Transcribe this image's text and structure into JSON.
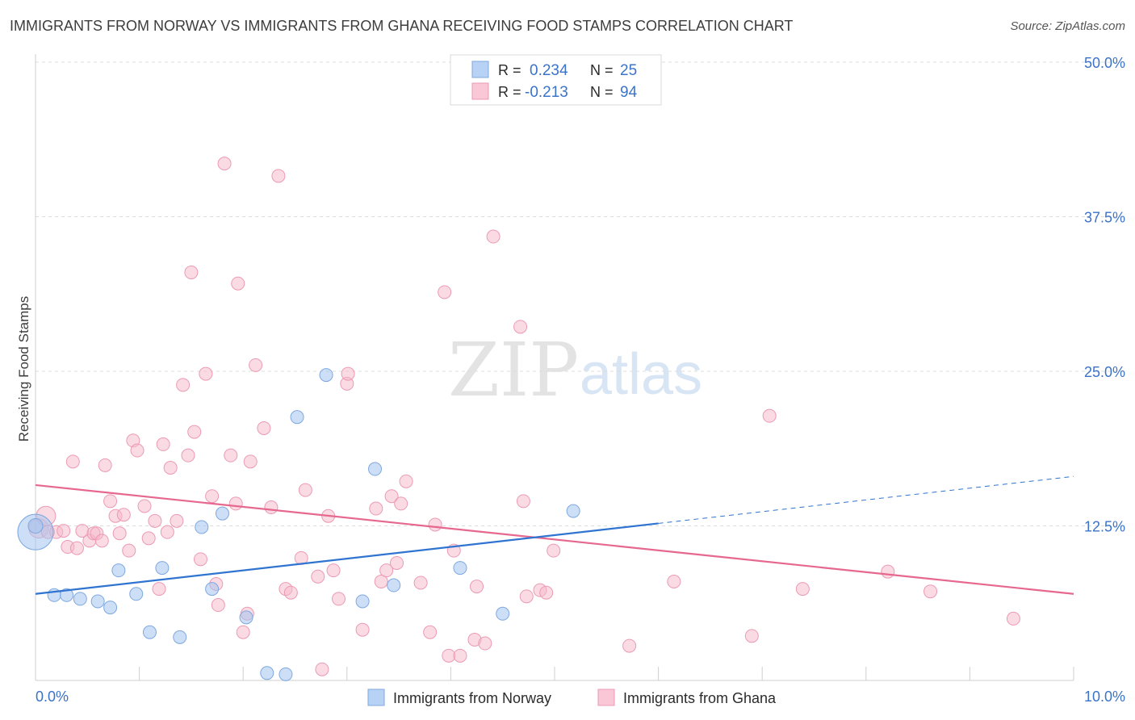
{
  "chart_data": {
    "type": "scatter",
    "title": "IMMIGRANTS FROM NORWAY VS IMMIGRANTS FROM GHANA RECEIVING FOOD STAMPS CORRELATION CHART",
    "source": "Source: ZipAtlas.com",
    "xlabel": "",
    "ylabel": "Receiving Food Stamps",
    "xlim": [
      0,
      10
    ],
    "ylim": [
      0,
      50
    ],
    "x_tick_labels": [
      "0.0%",
      "10.0%"
    ],
    "y_ticks": [
      12.5,
      25.0,
      37.5,
      50.0
    ],
    "y_tick_labels": [
      "12.5%",
      "25.0%",
      "37.5%",
      "50.0%"
    ],
    "watermark": {
      "part1": "ZIP",
      "part2": "atlas"
    },
    "legend": {
      "norway": {
        "r_label": "R =",
        "r_value": "0.234",
        "n_label": "N =",
        "n_value": "25"
      },
      "ghana": {
        "r_label": "R =",
        "r_value": "-0.213",
        "n_label": "N =",
        "n_value": "94"
      }
    },
    "series": [
      {
        "name": "Immigrants from Norway",
        "color": "#a4c5ee",
        "line_color": "#2f74d0",
        "trend": {
          "x0": 0,
          "y0": 7.0,
          "x1": 6.0,
          "y1": 12.7,
          "dash_to_x": 10.0,
          "dash_to_y": 16.5
        },
        "points": [
          [
            0.0,
            12.0,
            22
          ],
          [
            0.0,
            12.5,
            9
          ],
          [
            0.18,
            6.9,
            8
          ],
          [
            0.3,
            6.9,
            8
          ],
          [
            0.43,
            6.6,
            8
          ],
          [
            0.6,
            6.4,
            8
          ],
          [
            0.72,
            5.9,
            8
          ],
          [
            0.8,
            8.9,
            8
          ],
          [
            0.97,
            7.0,
            8
          ],
          [
            1.1,
            3.9,
            8
          ],
          [
            1.22,
            9.1,
            8
          ],
          [
            1.39,
            3.5,
            8
          ],
          [
            1.6,
            12.4,
            8
          ],
          [
            1.7,
            7.4,
            8
          ],
          [
            1.8,
            13.5,
            8
          ],
          [
            2.03,
            5.1,
            8
          ],
          [
            2.23,
            0.6,
            8
          ],
          [
            2.41,
            0.5,
            8
          ],
          [
            2.52,
            21.3,
            8
          ],
          [
            2.8,
            24.7,
            8
          ],
          [
            3.15,
            6.4,
            8
          ],
          [
            3.27,
            17.1,
            8
          ],
          [
            3.45,
            7.7,
            8
          ],
          [
            4.09,
            9.1,
            8
          ],
          [
            4.5,
            5.4,
            8
          ],
          [
            5.18,
            13.7,
            8
          ]
        ]
      },
      {
        "name": "Immigrants from Ghana",
        "color": "#f6b7ca",
        "line_color": "#e7688f",
        "trend": {
          "x0": 0,
          "y0": 15.8,
          "x1": 10.0,
          "y1": 7.0
        },
        "points": [
          [
            0.03,
            12.3,
            12
          ],
          [
            0.1,
            13.3,
            12
          ],
          [
            0.12,
            12.0,
            8
          ],
          [
            0.2,
            12.0,
            8
          ],
          [
            0.27,
            12.1,
            8
          ],
          [
            0.31,
            10.8,
            8
          ],
          [
            0.36,
            17.7,
            8
          ],
          [
            0.4,
            10.7,
            8
          ],
          [
            0.45,
            12.1,
            8
          ],
          [
            0.52,
            11.3,
            8
          ],
          [
            0.56,
            11.9,
            8
          ],
          [
            0.59,
            11.9,
            8
          ],
          [
            0.64,
            11.3,
            8
          ],
          [
            0.67,
            17.4,
            8
          ],
          [
            0.72,
            14.5,
            8
          ],
          [
            0.77,
            13.3,
            8
          ],
          [
            0.81,
            11.9,
            8
          ],
          [
            0.85,
            13.4,
            8
          ],
          [
            0.9,
            10.5,
            8
          ],
          [
            0.94,
            19.4,
            8
          ],
          [
            0.98,
            18.6,
            8
          ],
          [
            1.05,
            14.1,
            8
          ],
          [
            1.09,
            11.5,
            8
          ],
          [
            1.15,
            12.9,
            8
          ],
          [
            1.19,
            7.4,
            8
          ],
          [
            1.23,
            19.1,
            8
          ],
          [
            1.27,
            12.0,
            8
          ],
          [
            1.3,
            17.2,
            8
          ],
          [
            1.36,
            12.9,
            8
          ],
          [
            1.42,
            23.9,
            8
          ],
          [
            1.47,
            18.2,
            8
          ],
          [
            1.5,
            33.0,
            8
          ],
          [
            1.53,
            20.1,
            8
          ],
          [
            1.59,
            9.8,
            8
          ],
          [
            1.64,
            24.8,
            8
          ],
          [
            1.7,
            14.9,
            8
          ],
          [
            1.74,
            7.8,
            8
          ],
          [
            1.76,
            6.1,
            8
          ],
          [
            1.82,
            41.8,
            8
          ],
          [
            1.88,
            18.2,
            8
          ],
          [
            1.93,
            14.3,
            8
          ],
          [
            1.95,
            32.1,
            8
          ],
          [
            2.0,
            3.9,
            8
          ],
          [
            2.04,
            5.4,
            8
          ],
          [
            2.07,
            17.7,
            8
          ],
          [
            2.12,
            25.5,
            8
          ],
          [
            2.2,
            20.4,
            8
          ],
          [
            2.27,
            14.0,
            8
          ],
          [
            2.34,
            40.8,
            8
          ],
          [
            2.41,
            7.4,
            8
          ],
          [
            2.46,
            7.1,
            8
          ],
          [
            2.56,
            9.9,
            8
          ],
          [
            2.6,
            15.4,
            8
          ],
          [
            2.72,
            8.4,
            8
          ],
          [
            2.76,
            0.9,
            8
          ],
          [
            2.82,
            13.3,
            8
          ],
          [
            2.87,
            8.9,
            8
          ],
          [
            2.92,
            6.6,
            8
          ],
          [
            3.0,
            24.0,
            8
          ],
          [
            3.01,
            24.8,
            8
          ],
          [
            3.15,
            4.1,
            8
          ],
          [
            3.28,
            13.9,
            8
          ],
          [
            3.33,
            8.0,
            8
          ],
          [
            3.38,
            8.9,
            8
          ],
          [
            3.43,
            14.9,
            8
          ],
          [
            3.48,
            9.5,
            8
          ],
          [
            3.52,
            14.3,
            8
          ],
          [
            3.57,
            16.1,
            8
          ],
          [
            3.71,
            7.9,
            8
          ],
          [
            3.8,
            3.9,
            8
          ],
          [
            3.85,
            12.6,
            8
          ],
          [
            3.94,
            31.4,
            8
          ],
          [
            3.98,
            2.0,
            8
          ],
          [
            4.03,
            10.5,
            8
          ],
          [
            4.09,
            2.0,
            8
          ],
          [
            4.23,
            3.3,
            8
          ],
          [
            4.25,
            7.6,
            8
          ],
          [
            4.33,
            3.0,
            8
          ],
          [
            4.41,
            35.9,
            8
          ],
          [
            4.67,
            28.6,
            8
          ],
          [
            4.7,
            14.5,
            8
          ],
          [
            4.73,
            6.8,
            8
          ],
          [
            4.86,
            7.3,
            8
          ],
          [
            4.92,
            7.1,
            8
          ],
          [
            4.99,
            10.5,
            8
          ],
          [
            5.72,
            2.8,
            8
          ],
          [
            6.15,
            8.0,
            8
          ],
          [
            6.9,
            3.6,
            8
          ],
          [
            7.07,
            21.4,
            8
          ],
          [
            7.39,
            7.4,
            8
          ],
          [
            8.21,
            8.8,
            8
          ],
          [
            8.62,
            7.2,
            8
          ],
          [
            9.42,
            5.0,
            8
          ]
        ]
      }
    ]
  }
}
